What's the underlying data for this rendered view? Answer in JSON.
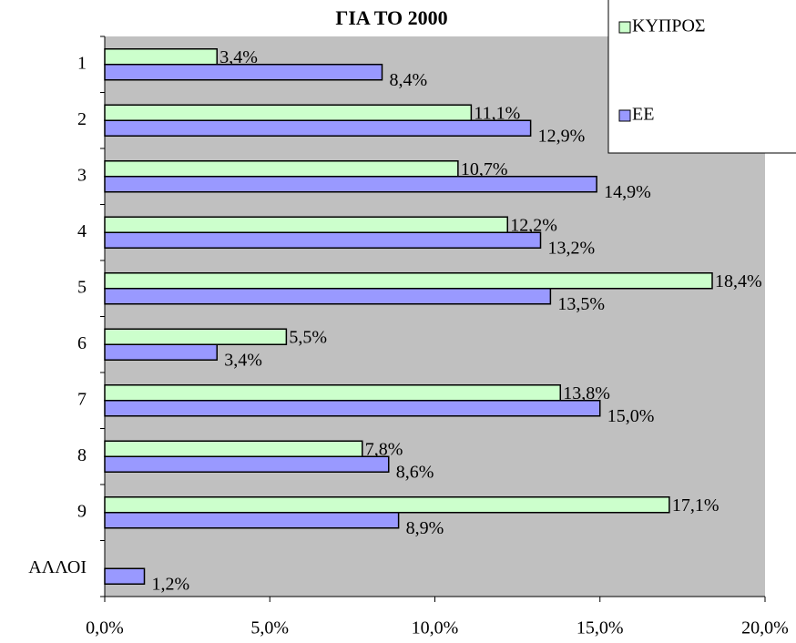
{
  "chart_data": {
    "type": "bar",
    "orientation": "horizontal",
    "title": "ΓΙΑ ΤΟ 2000",
    "categories": [
      "1",
      "2",
      "3",
      "4",
      "5",
      "6",
      "7",
      "8",
      "9",
      "ΑΛΛΟΙ"
    ],
    "series": [
      {
        "name": "ΚΥΠΡΟΣ",
        "color": "#ccffcc",
        "values": [
          3.4,
          11.1,
          10.7,
          12.2,
          18.4,
          5.5,
          13.8,
          7.8,
          17.1,
          null
        ],
        "value_labels": [
          "3,4%",
          "11,1%",
          "10,7%",
          "12,2%",
          "18,4%",
          "5,5%",
          "13,8%",
          "7,8%",
          "17,1%",
          null
        ]
      },
      {
        "name": "ΕΕ",
        "color": "#9999ff",
        "values": [
          8.4,
          12.9,
          14.9,
          13.2,
          13.5,
          3.4,
          15.0,
          8.6,
          8.9,
          1.2
        ],
        "value_labels": [
          "8,4%",
          "12,9%",
          "14,9%",
          "13,2%",
          "13,5%",
          "3,4%",
          "15,0%",
          "8,6%",
          "8,9%",
          "1,2%"
        ]
      }
    ],
    "xlim": [
      0,
      20
    ],
    "xticks": [
      {
        "value": 0,
        "label": "0,0%"
      },
      {
        "value": 5,
        "label": "5,0%"
      },
      {
        "value": 10,
        "label": "10,0%"
      },
      {
        "value": 15,
        "label": "15,0%"
      },
      {
        "value": 20,
        "label": "20,0%"
      }
    ],
    "legend": "top-right"
  }
}
